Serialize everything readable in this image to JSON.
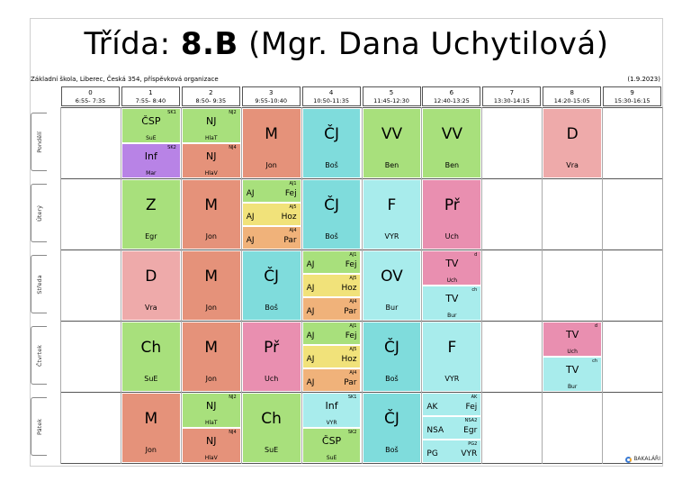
{
  "title": {
    "prefix": "Třída:",
    "class": "8.B",
    "teacher": "(Mgr. Dana Uchytilová)"
  },
  "school": "Základní škola, Liberec, Česká 354, příspěvková organizace",
  "date": "(1.9.2023)",
  "periods": [
    {
      "num": "0",
      "time": "6:55- 7:35"
    },
    {
      "num": "1",
      "time": "7:55- 8:40"
    },
    {
      "num": "2",
      "time": "8:50- 9:35"
    },
    {
      "num": "3",
      "time": "9:55-10:40"
    },
    {
      "num": "4",
      "time": "10:50-11:35"
    },
    {
      "num": "5",
      "time": "11:45-12:30"
    },
    {
      "num": "6",
      "time": "12:40-13:25"
    },
    {
      "num": "7",
      "time": "13:30-14:15"
    },
    {
      "num": "8",
      "time": "14:20-15:05"
    },
    {
      "num": "9",
      "time": "15:30-16:15"
    }
  ],
  "days": [
    "Pondělí",
    "Úterý",
    "Středa",
    "Čtvrtek",
    "Pátek"
  ],
  "colors": {
    "green": "#a8e07c",
    "purple": "#b883e6",
    "salmon": "#e5927a",
    "cyan": "#7fdcdc",
    "pink": "#e98fb0",
    "lightpink": "#eeaaaa",
    "yellow": "#f1e27a",
    "orange": "#f0b27a",
    "lightcyan": "#a8ecec"
  },
  "logo": "BAKALÁŘI",
  "lessons": [
    {
      "day": 0,
      "period": 1,
      "kind": "half",
      "parts": [
        {
          "subject": "ČSP",
          "teacher": "SuE",
          "group": "SK1",
          "color": "#a8e07c"
        },
        {
          "subject": "Inf",
          "teacher": "Mar",
          "group": "SK2",
          "color": "#b883e6"
        }
      ]
    },
    {
      "day": 0,
      "period": 2,
      "kind": "half",
      "parts": [
        {
          "subject": "NJ",
          "teacher": "HlaT",
          "group": "NJ2",
          "color": "#a8e07c"
        },
        {
          "subject": "NJ",
          "teacher": "HlaV",
          "group": "NJ4",
          "color": "#e5927a"
        }
      ]
    },
    {
      "day": 0,
      "period": 3,
      "kind": "full",
      "subject": "M",
      "teacher": "Jon",
      "color": "#e5927a"
    },
    {
      "day": 0,
      "period": 4,
      "kind": "full",
      "subject": "ČJ",
      "teacher": "Boš",
      "color": "#7fdcdc"
    },
    {
      "day": 0,
      "period": 5,
      "kind": "full",
      "subject": "VV",
      "teacher": "Ben",
      "color": "#a8e07c"
    },
    {
      "day": 0,
      "period": 6,
      "kind": "full",
      "subject": "VV",
      "teacher": "Ben",
      "color": "#a8e07c"
    },
    {
      "day": 0,
      "period": 8,
      "kind": "full",
      "subject": "D",
      "teacher": "Vra",
      "color": "#eeaaaa"
    },
    {
      "day": 1,
      "period": 1,
      "kind": "full",
      "subject": "Z",
      "teacher": "Egr",
      "color": "#a8e07c"
    },
    {
      "day": 1,
      "period": 2,
      "kind": "full",
      "subject": "M",
      "teacher": "Jon",
      "color": "#e5927a"
    },
    {
      "day": 1,
      "period": 3,
      "kind": "third",
      "parts": [
        {
          "subject": "AJ",
          "teacher": "Fej",
          "group": "AJ1",
          "color": "#a8e07c"
        },
        {
          "subject": "AJ",
          "teacher": "Hoz",
          "group": "AJ5",
          "color": "#f1e27a"
        },
        {
          "subject": "AJ",
          "teacher": "Par",
          "group": "AJ4",
          "color": "#f0b27a"
        }
      ]
    },
    {
      "day": 1,
      "period": 4,
      "kind": "full",
      "subject": "ČJ",
      "teacher": "Boš",
      "color": "#7fdcdc"
    },
    {
      "day": 1,
      "period": 5,
      "kind": "full",
      "subject": "F",
      "teacher": "VYR",
      "color": "#a8ecec"
    },
    {
      "day": 1,
      "period": 6,
      "kind": "full",
      "subject": "Př",
      "teacher": "Uch",
      "color": "#e98fb0"
    },
    {
      "day": 2,
      "period": 1,
      "kind": "full",
      "subject": "D",
      "teacher": "Vra",
      "color": "#eeaaaa"
    },
    {
      "day": 2,
      "period": 2,
      "kind": "full",
      "subject": "M",
      "teacher": "Jon",
      "color": "#e5927a"
    },
    {
      "day": 2,
      "period": 3,
      "kind": "full",
      "subject": "ČJ",
      "teacher": "Boš",
      "color": "#7fdcdc"
    },
    {
      "day": 2,
      "period": 4,
      "kind": "third",
      "parts": [
        {
          "subject": "AJ",
          "teacher": "Fej",
          "group": "AJ1",
          "color": "#a8e07c"
        },
        {
          "subject": "AJ",
          "teacher": "Hoz",
          "group": "AJ5",
          "color": "#f1e27a"
        },
        {
          "subject": "AJ",
          "teacher": "Par",
          "group": "AJ4",
          "color": "#f0b27a"
        }
      ]
    },
    {
      "day": 2,
      "period": 5,
      "kind": "full",
      "subject": "OV",
      "teacher": "Bur",
      "color": "#a8ecec"
    },
    {
      "day": 2,
      "period": 6,
      "kind": "half",
      "parts": [
        {
          "subject": "TV",
          "teacher": "Uch",
          "group": "d",
          "color": "#e98fb0"
        },
        {
          "subject": "TV",
          "teacher": "Bur",
          "group": "ch",
          "color": "#a8ecec"
        }
      ]
    },
    {
      "day": 3,
      "period": 1,
      "kind": "full",
      "subject": "Ch",
      "teacher": "SuE",
      "color": "#a8e07c"
    },
    {
      "day": 3,
      "period": 2,
      "kind": "full",
      "subject": "M",
      "teacher": "Jon",
      "color": "#e5927a"
    },
    {
      "day": 3,
      "period": 3,
      "kind": "full",
      "subject": "Př",
      "teacher": "Uch",
      "color": "#e98fb0"
    },
    {
      "day": 3,
      "period": 4,
      "kind": "third",
      "parts": [
        {
          "subject": "AJ",
          "teacher": "Fej",
          "group": "AJ1",
          "color": "#a8e07c"
        },
        {
          "subject": "AJ",
          "teacher": "Hoz",
          "group": "AJ5",
          "color": "#f1e27a"
        },
        {
          "subject": "AJ",
          "teacher": "Par",
          "group": "AJ4",
          "color": "#f0b27a"
        }
      ]
    },
    {
      "day": 3,
      "period": 5,
      "kind": "full",
      "subject": "ČJ",
      "teacher": "Boš",
      "color": "#7fdcdc"
    },
    {
      "day": 3,
      "period": 6,
      "kind": "full",
      "subject": "F",
      "teacher": "VYR",
      "color": "#a8ecec"
    },
    {
      "day": 3,
      "period": 8,
      "kind": "half",
      "parts": [
        {
          "subject": "TV",
          "teacher": "Uch",
          "group": "d",
          "color": "#e98fb0"
        },
        {
          "subject": "TV",
          "teacher": "Bur",
          "group": "ch",
          "color": "#a8ecec"
        }
      ]
    },
    {
      "day": 4,
      "period": 1,
      "kind": "full",
      "subject": "M",
      "teacher": "Jon",
      "color": "#e5927a"
    },
    {
      "day": 4,
      "period": 2,
      "kind": "half",
      "parts": [
        {
          "subject": "NJ",
          "teacher": "HlaT",
          "group": "NJ2",
          "color": "#a8e07c"
        },
        {
          "subject": "NJ",
          "teacher": "HlaV",
          "group": "NJ4",
          "color": "#e5927a"
        }
      ]
    },
    {
      "day": 4,
      "period": 3,
      "kind": "full",
      "subject": "Ch",
      "teacher": "SuE",
      "color": "#a8e07c"
    },
    {
      "day": 4,
      "period": 4,
      "kind": "half",
      "parts": [
        {
          "subject": "Inf",
          "teacher": "VYR",
          "group": "SK1",
          "color": "#a8ecec"
        },
        {
          "subject": "ČSP",
          "teacher": "SuE",
          "group": "SK2",
          "color": "#a8e07c"
        }
      ]
    },
    {
      "day": 4,
      "period": 5,
      "kind": "full",
      "subject": "ČJ",
      "teacher": "Boš",
      "color": "#7fdcdc"
    },
    {
      "day": 4,
      "period": 6,
      "kind": "third",
      "parts": [
        {
          "subject": "AK",
          "teacher": "Fej",
          "group": "AK",
          "color": "#a8ecec"
        },
        {
          "subject": "NSA",
          "teacher": "Egr",
          "group": "NSA2",
          "color": "#a8ecec"
        },
        {
          "subject": "PG",
          "teacher": "VYR",
          "group": "PG2",
          "color": "#a8ecec"
        }
      ]
    }
  ]
}
